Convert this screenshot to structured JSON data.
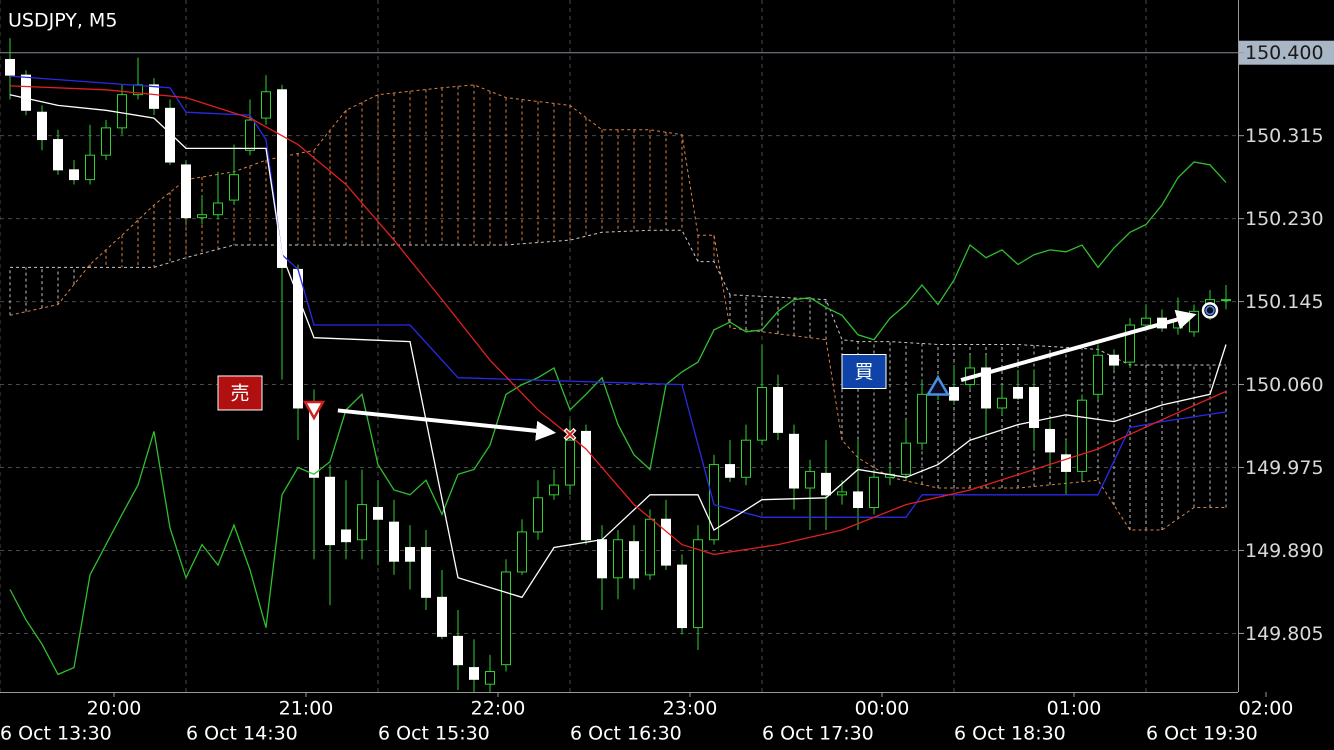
{
  "chart_data": {
    "type": "candlestick",
    "title": "USDJPY, M5",
    "xlim": [
      -0.625,
      76.75
    ],
    "ylim": [
      149.745,
      150.454
    ],
    "yticks": [
      {
        "value": 150.4,
        "label": "150.400"
      },
      150.315,
      {
        "value": 150.23,
        "label": "150.230"
      },
      150.145,
      {
        "value": 150.06,
        "label": "150.060"
      },
      149.975,
      {
        "value": 149.89,
        "label": "149.890"
      },
      149.805
    ],
    "highlight": {
      "ytick": 0,
      "color": "#a9b6c6",
      "line_color": "#7f8a99"
    },
    "xticks": [
      {
        "value": 6.5,
        "label": "20:00"
      },
      {
        "value": 18.5,
        "label": "21:00"
      },
      {
        "value": 30.5,
        "label": "22:00"
      },
      {
        "value": 42.5,
        "label": "23:00"
      },
      {
        "value": 54.5,
        "label": "00:00"
      },
      {
        "value": 66.5,
        "label": "01:00"
      },
      {
        "value": 78.5,
        "label": "02:00"
      }
    ],
    "xticks2": [
      {
        "value": -0.625,
        "label": "6 Oct 13:30"
      },
      {
        "value": 11,
        "label": "6 Oct 14:30"
      },
      {
        "value": 23,
        "label": "6 Oct 15:30"
      },
      {
        "value": 35,
        "label": "6 Oct 16:30"
      },
      {
        "value": 47,
        "label": "6 Oct 17:30"
      },
      {
        "value": 59,
        "label": "6 Oct 18:30"
      },
      {
        "value": 71,
        "label": "6 Oct 19:30"
      }
    ],
    "grid": true,
    "bull_color": "#2fd02f",
    "bear_color": "#ffffff",
    "wick_color": "#2fd02f",
    "candles": {
      "open": [
        150.393,
        150.377,
        150.339,
        150.311,
        150.28,
        150.27,
        150.295,
        150.323,
        150.357,
        150.367,
        150.343,
        150.285,
        150.231,
        150.234,
        150.249,
        150.3,
        150.333,
        150.362,
        150.178,
        150.036,
        149.965,
        149.911,
        149.901,
        149.934,
        149.919,
        149.893,
        149.893,
        149.842,
        149.802,
        149.77,
        149.753,
        149.773,
        149.868,
        149.909,
        149.947,
        149.957,
        150.012,
        149.901,
        149.862,
        149.899,
        149.865,
        149.922,
        149.875,
        149.811,
        149.901,
        149.978,
        149.965,
        150.003,
        150.057,
        150.009,
        149.954,
        149.969,
        149.947,
        149.95,
        149.934,
        149.965,
        149.968,
        150.0,
        150.05,
        150.057,
        150.06,
        150.077,
        150.036,
        150.057,
        150.057,
        150.014,
        149.988,
        149.971,
        150.05,
        150.09,
        150.083,
        150.121,
        150.128,
        150.118,
        150.114,
        150.142,
        150.147
      ],
      "high": [
        150.415,
        150.382,
        150.346,
        150.321,
        150.29,
        150.326,
        150.331,
        150.367,
        150.395,
        150.374,
        150.352,
        150.29,
        150.254,
        150.278,
        150.306,
        150.352,
        150.377,
        150.367,
        150.183,
        150.055,
        149.978,
        149.962,
        149.973,
        149.962,
        149.942,
        149.916,
        149.911,
        149.87,
        149.829,
        149.799,
        149.783,
        149.881,
        149.922,
        149.962,
        149.973,
        150.024,
        150.019,
        149.916,
        149.911,
        149.916,
        149.932,
        149.942,
        149.886,
        149.916,
        149.988,
        150.003,
        150.019,
        150.101,
        150.07,
        150.019,
        149.983,
        150.003,
        149.962,
        150.003,
        149.973,
        149.978,
        150.024,
        150.065,
        150.07,
        150.08,
        150.09,
        150.09,
        150.06,
        150.075,
        150.075,
        150.024,
        150.003,
        150.05,
        150.101,
        150.096,
        150.128,
        150.142,
        150.137,
        150.149,
        150.142,
        150.157,
        150.162
      ],
      "low": [
        150.352,
        150.336,
        150.3,
        150.275,
        150.265,
        150.265,
        150.29,
        150.316,
        150.352,
        150.336,
        150.285,
        150.227,
        150.224,
        150.229,
        150.244,
        150.295,
        150.326,
        150.065,
        150.003,
        149.881,
        149.834,
        149.881,
        149.881,
        149.875,
        149.865,
        149.85,
        149.829,
        149.799,
        149.747,
        149.742,
        149.742,
        149.766,
        149.865,
        149.901,
        149.942,
        149.947,
        149.896,
        149.829,
        149.84,
        149.85,
        149.86,
        149.87,
        149.804,
        149.788,
        149.896,
        149.96,
        149.957,
        149.998,
        150.003,
        149.932,
        149.911,
        149.911,
        149.937,
        149.911,
        149.927,
        149.957,
        149.962,
        149.993,
        150.044,
        150.039,
        150.055,
        150.009,
        150.029,
        150.044,
        149.993,
        149.973,
        149.947,
        149.962,
        150.044,
        150.075,
        150.077,
        150.116,
        150.114,
        150.111,
        150.109,
        150.126,
        150.137
      ],
      "close": [
        150.377,
        150.341,
        150.311,
        150.28,
        150.27,
        150.295,
        150.323,
        150.357,
        150.367,
        150.343,
        150.288,
        150.231,
        150.234,
        150.246,
        150.275,
        150.331,
        150.36,
        150.18,
        150.036,
        149.965,
        149.896,
        149.899,
        149.937,
        149.922,
        149.879,
        149.879,
        149.842,
        149.802,
        149.773,
        149.758,
        149.766,
        149.868,
        149.909,
        149.944,
        149.957,
        150.003,
        149.901,
        149.862,
        149.901,
        149.862,
        149.922,
        149.875,
        149.811,
        149.901,
        149.978,
        149.965,
        150.003,
        150.057,
        150.011,
        149.954,
        149.971,
        149.947,
        149.95,
        149.934,
        149.965,
        149.968,
        150.0,
        150.05,
        150.055,
        150.044,
        150.077,
        150.036,
        150.046,
        150.046,
        150.016,
        149.991,
        149.971,
        150.044,
        150.09,
        150.08,
        150.121,
        150.128,
        150.118,
        150.126,
        150.135,
        150.147,
        150.147
      ]
    },
    "cloud": {
      "x": [
        0,
        3,
        5,
        7,
        9,
        11,
        14,
        16,
        19,
        21,
        23,
        27,
        29,
        31,
        35,
        37,
        40,
        42,
        43,
        44,
        45,
        51,
        52,
        53,
        55,
        58,
        63,
        68,
        70,
        72,
        74,
        76
      ],
      "a": {
        "color": "#d9834a",
        "values": [
          150.131,
          150.142,
          150.183,
          150.213,
          150.244,
          150.27,
          150.278,
          150.29,
          150.3,
          150.341,
          150.357,
          150.364,
          150.367,
          150.354,
          150.346,
          150.321,
          150.321,
          150.316,
          150.213,
          150.213,
          150.118,
          150.106,
          150.003,
          149.985,
          149.965,
          149.954,
          149.954,
          149.962,
          149.911,
          149.911,
          149.934,
          149.934
        ]
      },
      "b": {
        "color": "#c8c8c8",
        "values": [
          150.18,
          150.18,
          150.18,
          150.18,
          150.18,
          150.19,
          150.203,
          150.203,
          150.203,
          150.203,
          150.203,
          150.203,
          150.203,
          150.203,
          150.208,
          150.216,
          150.218,
          150.218,
          150.186,
          150.186,
          150.152,
          150.147,
          150.106,
          150.104,
          150.104,
          150.101,
          150.101,
          150.096,
          150.08,
          150.08,
          150.08,
          150.08
        ]
      },
      "up_color": "#d9834a",
      "down_color": "#bfbfbf"
    },
    "lines": [
      {
        "color": "#2fbf2f",
        "values": [
          149.85,
          149.819,
          149.794,
          149.763,
          149.77,
          149.865,
          149.896,
          149.927,
          149.957,
          150.012,
          149.913,
          149.862,
          149.896,
          149.875,
          149.916,
          149.87,
          149.811,
          149.947,
          149.975,
          149.968,
          149.981,
          150.034,
          150.05,
          149.978,
          149.952,
          149.947,
          149.962,
          149.927,
          149.968,
          149.973,
          149.998,
          150.05,
          150.06,
          150.067,
          150.077,
          150.034,
          150.05,
          150.067,
          150.019,
          149.988,
          149.973,
          150.06,
          150.073,
          150.083,
          150.116,
          150.124,
          150.114,
          150.116,
          150.135,
          150.147,
          150.149,
          150.139,
          150.131,
          150.111,
          150.106,
          150.128,
          150.142,
          150.162,
          150.142,
          150.167,
          150.203,
          150.19,
          150.198,
          150.183,
          150.193,
          150.198,
          150.196,
          150.203,
          150.18,
          150.2,
          150.216,
          150.224,
          150.244,
          150.272,
          150.288,
          150.285,
          150.267
        ]
      },
      {
        "color": "#2a2ae6",
        "x": [
          0,
          10,
          11,
          15,
          16,
          17,
          18,
          19,
          25,
          28,
          42,
          44,
          47,
          56,
          57,
          68,
          70,
          72,
          76
        ],
        "values": [
          150.376,
          150.364,
          150.339,
          150.336,
          150.311,
          150.193,
          150.178,
          150.121,
          150.121,
          150.067,
          150.06,
          149.937,
          149.924,
          149.924,
          149.947,
          149.947,
          150.016,
          150.022,
          150.032
        ]
      },
      {
        "color": "#ffffff",
        "x": [
          0,
          3,
          6,
          9,
          11,
          16,
          17,
          19,
          25,
          28,
          32,
          34,
          37,
          40,
          43,
          44,
          47,
          51,
          53,
          56,
          58,
          60,
          63,
          66,
          69,
          72,
          75,
          76
        ],
        "values": [
          150.357,
          150.346,
          150.341,
          150.333,
          150.302,
          150.302,
          150.193,
          150.108,
          150.104,
          149.862,
          149.842,
          149.893,
          149.901,
          149.947,
          149.947,
          149.911,
          149.942,
          149.944,
          149.973,
          149.965,
          149.978,
          150.003,
          150.019,
          150.029,
          150.022,
          150.039,
          150.05,
          150.101
        ]
      },
      {
        "color": "#e02020",
        "x": [
          0,
          6,
          11,
          15,
          18,
          21,
          24,
          27,
          30,
          33,
          36,
          39,
          42,
          44,
          48,
          52,
          56,
          60,
          64,
          68,
          72,
          76
        ],
        "values": [
          150.366,
          150.362,
          150.354,
          150.333,
          150.306,
          150.265,
          150.208,
          150.147,
          150.085,
          150.034,
          149.994,
          149.937,
          149.896,
          149.886,
          149.896,
          149.911,
          149.937,
          149.952,
          149.973,
          149.994,
          150.024,
          150.053
        ]
      }
    ],
    "trades": [
      {
        "side": "sell",
        "label": "売",
        "color": "#b01010",
        "entry_x": 19,
        "entry": 150.036,
        "exit_x": 35,
        "exit": 150.009
      },
      {
        "side": "buy",
        "label": "買",
        "color": "#1043a8",
        "entry_x": 58,
        "entry": 150.058,
        "exit_x": 75,
        "exit": 150.136
      }
    ]
  }
}
